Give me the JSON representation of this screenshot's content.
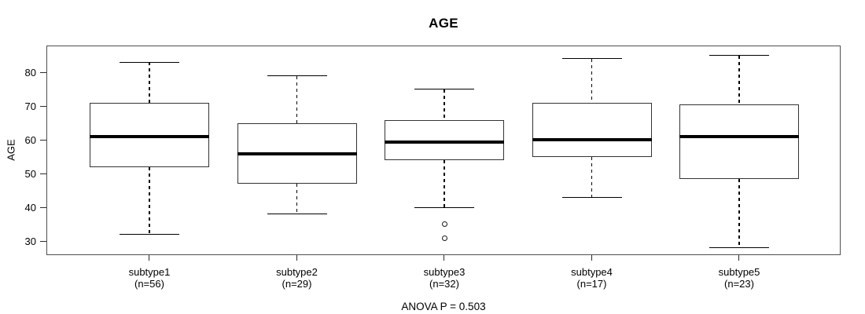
{
  "chart_data": {
    "type": "boxplot",
    "title": "AGE",
    "ylabel": "AGE",
    "xlabel": "",
    "footnote": "ANOVA P = 0.503",
    "ylim": [
      25.9,
      88.0
    ],
    "yticks": [
      30,
      40,
      50,
      60,
      70,
      80
    ],
    "grid": false,
    "legend": "none",
    "groups": [
      {
        "label": "subtype1",
        "sublabel": "(n=56)",
        "n": 56,
        "whisker_low": 32,
        "q1": 52,
        "median": 61,
        "q3": 71,
        "whisker_high": 83,
        "outliers": []
      },
      {
        "label": "subtype2",
        "sublabel": "(n=29)",
        "n": 29,
        "whisker_low": 38,
        "q1": 47,
        "median": 56,
        "q3": 65,
        "whisker_high": 79,
        "outliers": []
      },
      {
        "label": "subtype3",
        "sublabel": "(n=32)",
        "n": 32,
        "whisker_low": 40,
        "q1": 54,
        "median": 59.5,
        "q3": 66,
        "whisker_high": 75,
        "outliers": [
          35,
          31
        ]
      },
      {
        "label": "subtype4",
        "sublabel": "(n=17)",
        "n": 17,
        "whisker_low": 43,
        "q1": 55,
        "median": 60,
        "q3": 71,
        "whisker_high": 84,
        "outliers": []
      },
      {
        "label": "subtype5",
        "sublabel": "(n=23)",
        "n": 23,
        "whisker_low": 28,
        "q1": 48.5,
        "median": 61,
        "q3": 70.5,
        "whisker_high": 85,
        "outliers": []
      }
    ],
    "colors": {
      "background": "#ffffff",
      "text": "#000000",
      "plot_border": "#4f4f4f",
      "box_border": "#333333",
      "box_fill": "#ffffff",
      "median": "#000000",
      "whisker": "#000000",
      "outlier": "#1a1a1a"
    }
  }
}
